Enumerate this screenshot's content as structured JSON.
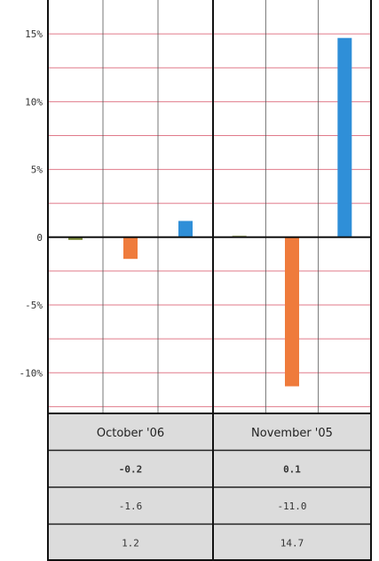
{
  "chart_data": {
    "type": "bar",
    "categories": [
      "October '06",
      "November '05"
    ],
    "series": [
      {
        "values": [
          -0.2,
          0.1
        ],
        "color": "#7a8a3a"
      },
      {
        "values": [
          -1.6,
          -11.0
        ],
        "color": "#ef7b3c"
      },
      {
        "values": [
          1.2,
          14.7
        ],
        "color": "#2f8fd8"
      }
    ],
    "ylim": [
      -13,
      17.5
    ],
    "yticks": [
      {
        "value": 15,
        "label": "15%"
      },
      {
        "value": 10,
        "label": "10%"
      },
      {
        "value": 5,
        "label": "5%"
      },
      {
        "value": 0,
        "label": "0"
      },
      {
        "value": -5,
        "label": "-5%"
      },
      {
        "value": -10,
        "label": "-10%"
      }
    ],
    "table": {
      "header": [
        "October '06",
        "November '05"
      ],
      "rows": [
        [
          "-0.2",
          "0.1"
        ],
        [
          "-1.6",
          "-11.0"
        ],
        [
          "1.2",
          "14.7"
        ]
      ],
      "bold_rows": [
        0
      ]
    },
    "grid": true,
    "gridline_color": "#e07a8a",
    "table_background": "#dcdcdc"
  }
}
